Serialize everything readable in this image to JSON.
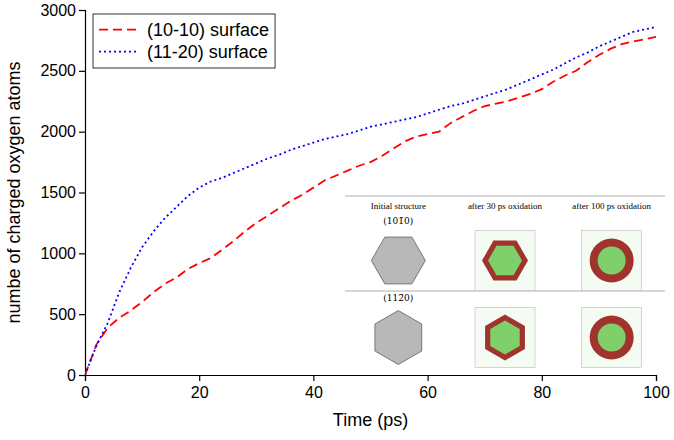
{
  "chart_data": {
    "type": "line",
    "x_label": "Time (ps)",
    "y_label": "numbe of charged oxygen atoms",
    "x": [
      0,
      2,
      4,
      6,
      8,
      10,
      12,
      14,
      16,
      18,
      20,
      22,
      24,
      26,
      28,
      30,
      32,
      34,
      36,
      38,
      40,
      42,
      44,
      46,
      48,
      50,
      52,
      54,
      56,
      58,
      60,
      62,
      64,
      66,
      68,
      70,
      72,
      74,
      76,
      78,
      80,
      82,
      84,
      86,
      88,
      90,
      92,
      94,
      96,
      98,
      100
    ],
    "series": [
      {
        "name": "(10-10) surface",
        "color": "#ff0000",
        "line_style": "dashed",
        "values": [
          0,
          250,
          390,
          470,
          530,
          600,
          680,
          750,
          800,
          870,
          920,
          960,
          1030,
          1100,
          1180,
          1250,
          1310,
          1370,
          1430,
          1480,
          1540,
          1600,
          1640,
          1680,
          1720,
          1750,
          1800,
          1860,
          1920,
          1960,
          1980,
          2000,
          2070,
          2120,
          2170,
          2210,
          2230,
          2250,
          2280,
          2310,
          2350,
          2410,
          2460,
          2500,
          2570,
          2630,
          2680,
          2720,
          2740,
          2760,
          2780
        ]
      },
      {
        "name": "(11-20) surface",
        "color": "#0000ff",
        "line_style": "dotted",
        "values": [
          0,
          240,
          430,
          680,
          880,
          1050,
          1180,
          1290,
          1380,
          1470,
          1540,
          1590,
          1620,
          1660,
          1700,
          1740,
          1780,
          1810,
          1850,
          1880,
          1910,
          1940,
          1960,
          1980,
          2010,
          2040,
          2060,
          2080,
          2100,
          2120,
          2150,
          2180,
          2210,
          2230,
          2260,
          2290,
          2320,
          2350,
          2390,
          2430,
          2470,
          2510,
          2560,
          2610,
          2650,
          2700,
          2740,
          2780,
          2820,
          2840,
          2860
        ]
      }
    ],
    "xlim": [
      0,
      100
    ],
    "xticks": [
      0,
      20,
      40,
      60,
      80,
      100
    ],
    "ylim": [
      0,
      3000
    ],
    "yticks": [
      0,
      500,
      1000,
      1500,
      2000,
      2500,
      3000
    ],
    "legend": "upper left",
    "annotations": [
      "Initial structure",
      "after 30 ps oxidation",
      "after 100 ps oxidation",
      "(101̄0)",
      "(112̄0)"
    ]
  }
}
